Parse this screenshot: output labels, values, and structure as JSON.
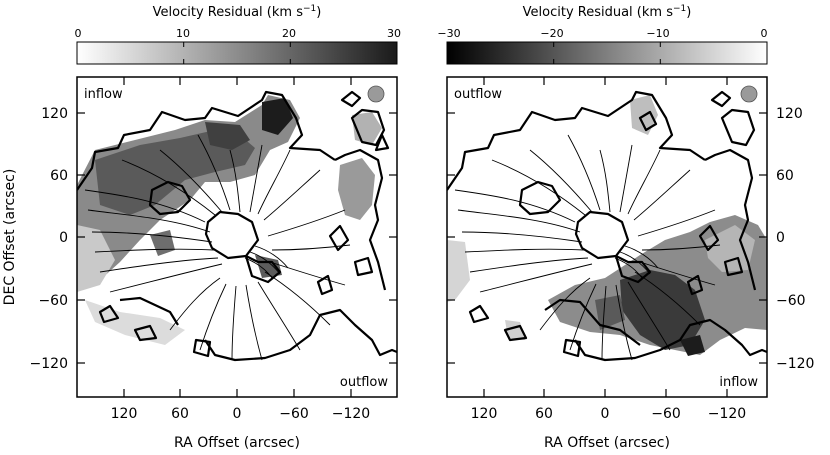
{
  "figure": {
    "ylabel": "DEC Offset (arcsec)",
    "left_panel": {
      "colorbar_label": "Velocity Residual (km s",
      "colorbar_sup": "−1",
      "colorbar_close": ")",
      "colorbar_ticks": [
        "0",
        "10",
        "20",
        "30"
      ],
      "corner_top": "inflow",
      "corner_bottom": "outflow",
      "xlabel": "RA Offset (arcsec)",
      "xticks": [
        "120",
        "60",
        "0",
        "−60",
        "−120"
      ],
      "yticks": [
        "120",
        "60",
        "0",
        "−60",
        "−120"
      ]
    },
    "right_panel": {
      "colorbar_label": "Velocity Residual (km s",
      "colorbar_sup": "−1",
      "colorbar_close": ")",
      "colorbar_ticks": [
        "−30",
        "−20",
        "−10",
        "0"
      ],
      "corner_top": "outflow",
      "corner_bottom": "inflow",
      "xlabel": "RA Offset (arcsec)",
      "xticks": [
        "120",
        "60",
        "0",
        "−60",
        "−120"
      ],
      "yticks": [
        "120",
        "60",
        "0",
        "−60",
        "−120"
      ]
    }
  },
  "colors": {
    "background": "#ffffff",
    "ink": "#000000",
    "beam": "#9a9a9a"
  }
}
